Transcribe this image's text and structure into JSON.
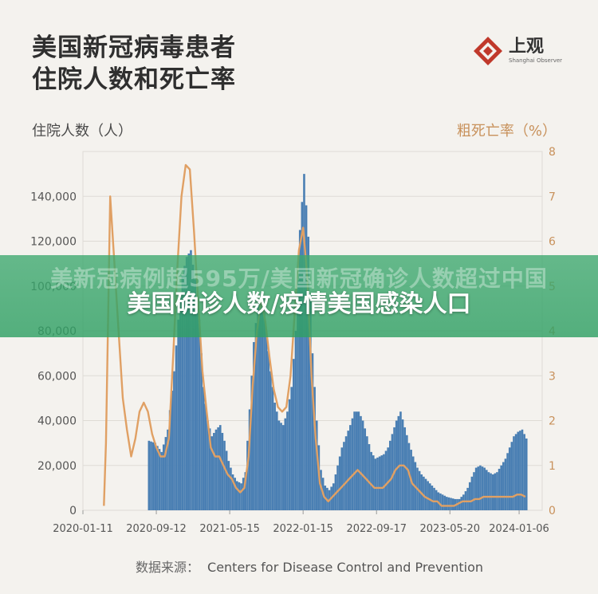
{
  "header": {
    "title_line1": "美国新冠病毒患者",
    "title_line2": "住院人数和死亡率",
    "logo_cn": "上观",
    "logo_en": "Shanghai Observer"
  },
  "source": {
    "label": "数据来源：",
    "text": "Centers for Disease Control and Prevention"
  },
  "overlay": {
    "background_text": "美新冠病例超595万/美国新冠确诊人数超过中国",
    "headline": "美国确诊人数/疫情美国感染人口"
  },
  "colors": {
    "bar": "#4a7fb3",
    "line": "#e0a064",
    "axis_right": "#c8915b",
    "grid": "#dedbd5"
  },
  "chart_data": {
    "type": "bar",
    "y_axis_label": "住院人数（人）",
    "y2_axis_label": "粗死亡率（%）",
    "ylim": [
      0,
      160000
    ],
    "y2lim": [
      0,
      8
    ],
    "yticks": [
      "0",
      "20,000",
      "40,000",
      "60,000",
      "80,000",
      "100,000",
      "120,000",
      "140,000"
    ],
    "yticks_values": [
      0,
      20000,
      40000,
      60000,
      80000,
      100000,
      120000,
      140000
    ],
    "y2ticks": [
      "0",
      "1",
      "2",
      "3",
      "4",
      "5",
      "6",
      "7",
      "8"
    ],
    "y2ticks_values": [
      0,
      1,
      2,
      3,
      4,
      5,
      6,
      7,
      8
    ],
    "xticks": [
      "2020-01-11",
      "2020-09-12",
      "2021-05-15",
      "2022-01-15",
      "2022-09-17",
      "2023-05-20",
      "2024-01-06"
    ],
    "xlim": [
      "2020-01-11",
      "2024-03-23"
    ],
    "grid": true,
    "series": [
      {
        "name": "住院人数",
        "type": "bar",
        "points": [
          [
            "2020-08-15",
            31000
          ],
          [
            "2020-09-05",
            30000
          ],
          [
            "2020-09-26",
            26000
          ],
          [
            "2020-10-17",
            36000
          ],
          [
            "2020-11-07",
            62000
          ],
          [
            "2020-11-21",
            85000
          ],
          [
            "2020-12-05",
            105000
          ],
          [
            "2020-12-19",
            113000
          ],
          [
            "2021-01-02",
            116000
          ],
          [
            "2021-01-16",
            103000
          ],
          [
            "2021-01-30",
            85000
          ],
          [
            "2021-02-13",
            55000
          ],
          [
            "2021-02-27",
            40000
          ],
          [
            "2021-03-13",
            33000
          ],
          [
            "2021-03-27",
            36000
          ],
          [
            "2021-04-10",
            38000
          ],
          [
            "2021-04-24",
            31000
          ],
          [
            "2021-05-08",
            22000
          ],
          [
            "2021-05-22",
            16000
          ],
          [
            "2021-06-05",
            13000
          ],
          [
            "2021-06-19",
            12000
          ],
          [
            "2021-07-03",
            17000
          ],
          [
            "2021-07-17",
            45000
          ],
          [
            "2021-07-31",
            75000
          ],
          [
            "2021-08-14",
            92000
          ],
          [
            "2021-08-28",
            96000
          ],
          [
            "2021-09-11",
            80000
          ],
          [
            "2021-09-25",
            62000
          ],
          [
            "2021-10-09",
            48000
          ],
          [
            "2021-10-23",
            40000
          ],
          [
            "2021-11-06",
            38000
          ],
          [
            "2021-11-20",
            44000
          ],
          [
            "2021-12-04",
            55000
          ],
          [
            "2021-12-18",
            80000
          ],
          [
            "2022-01-01",
            125000
          ],
          [
            "2022-01-15",
            150000
          ],
          [
            "2022-01-29",
            122000
          ],
          [
            "2022-02-12",
            70000
          ],
          [
            "2022-02-26",
            40000
          ],
          [
            "2022-03-12",
            18000
          ],
          [
            "2022-03-26",
            11000
          ],
          [
            "2022-04-09",
            9000
          ],
          [
            "2022-04-23",
            12000
          ],
          [
            "2022-05-07",
            20000
          ],
          [
            "2022-05-21",
            28000
          ],
          [
            "2022-06-04",
            33000
          ],
          [
            "2022-06-18",
            38000
          ],
          [
            "2022-07-02",
            44000
          ],
          [
            "2022-07-16",
            44000
          ],
          [
            "2022-07-30",
            40000
          ],
          [
            "2022-08-13",
            33000
          ],
          [
            "2022-08-27",
            26000
          ],
          [
            "2022-09-10",
            23000
          ],
          [
            "2022-09-24",
            24000
          ],
          [
            "2022-10-08",
            25000
          ],
          [
            "2022-10-22",
            28000
          ],
          [
            "2022-11-05",
            34000
          ],
          [
            "2022-11-19",
            40000
          ],
          [
            "2022-12-03",
            44000
          ],
          [
            "2022-12-17",
            37000
          ],
          [
            "2022-12-31",
            30000
          ],
          [
            "2023-01-14",
            24000
          ],
          [
            "2023-01-28",
            19000
          ],
          [
            "2023-02-11",
            16000
          ],
          [
            "2023-02-25",
            14000
          ],
          [
            "2023-03-11",
            12000
          ],
          [
            "2023-03-25",
            10000
          ],
          [
            "2023-04-08",
            8000
          ],
          [
            "2023-04-22",
            7000
          ],
          [
            "2023-05-06",
            6000
          ],
          [
            "2023-05-20",
            5500
          ],
          [
            "2023-06-03",
            5000
          ],
          [
            "2023-06-17",
            5000
          ],
          [
            "2023-07-01",
            7000
          ],
          [
            "2023-07-15",
            10000
          ],
          [
            "2023-07-29",
            15000
          ],
          [
            "2023-08-12",
            19000
          ],
          [
            "2023-08-26",
            20000
          ],
          [
            "2023-09-09",
            19000
          ],
          [
            "2023-09-23",
            17000
          ],
          [
            "2023-10-07",
            16000
          ],
          [
            "2023-10-21",
            17000
          ],
          [
            "2023-11-04",
            20000
          ],
          [
            "2023-11-18",
            23000
          ],
          [
            "2023-12-02",
            28000
          ],
          [
            "2023-12-16",
            33000
          ],
          [
            "2023-12-30",
            35000
          ],
          [
            "2024-01-13",
            36000
          ],
          [
            "2024-01-27",
            32000
          ]
        ]
      },
      {
        "name": "粗死亡率",
        "type": "line",
        "axis": "y2",
        "points": [
          [
            "2020-03-21",
            0.1
          ],
          [
            "2020-03-28",
            1.5
          ],
          [
            "2020-04-11",
            7.0
          ],
          [
            "2020-04-25",
            5.5
          ],
          [
            "2020-05-09",
            4.0
          ],
          [
            "2020-05-23",
            2.5
          ],
          [
            "2020-06-06",
            1.8
          ],
          [
            "2020-06-20",
            1.2
          ],
          [
            "2020-07-04",
            1.6
          ],
          [
            "2020-07-18",
            2.2
          ],
          [
            "2020-08-01",
            2.4
          ],
          [
            "2020-08-15",
            2.2
          ],
          [
            "2020-08-29",
            1.7
          ],
          [
            "2020-09-12",
            1.4
          ],
          [
            "2020-09-26",
            1.2
          ],
          [
            "2020-10-10",
            1.2
          ],
          [
            "2020-10-24",
            1.6
          ],
          [
            "2020-11-07",
            3.4
          ],
          [
            "2020-11-21",
            5.4
          ],
          [
            "2020-12-05",
            7.0
          ],
          [
            "2020-12-19",
            7.7
          ],
          [
            "2021-01-02",
            7.6
          ],
          [
            "2021-01-16",
            6.2
          ],
          [
            "2021-01-30",
            4.6
          ],
          [
            "2021-02-13",
            3.1
          ],
          [
            "2021-02-27",
            2.2
          ],
          [
            "2021-03-13",
            1.4
          ],
          [
            "2021-03-27",
            1.2
          ],
          [
            "2021-04-10",
            1.2
          ],
          [
            "2021-04-24",
            1.0
          ],
          [
            "2021-05-08",
            0.8
          ],
          [
            "2021-05-22",
            0.7
          ],
          [
            "2021-06-05",
            0.5
          ],
          [
            "2021-06-19",
            0.4
          ],
          [
            "2021-07-03",
            0.5
          ],
          [
            "2021-07-17",
            1.2
          ],
          [
            "2021-07-31",
            2.8
          ],
          [
            "2021-08-14",
            4.0
          ],
          [
            "2021-08-28",
            4.7
          ],
          [
            "2021-09-11",
            4.2
          ],
          [
            "2021-09-25",
            3.4
          ],
          [
            "2021-10-09",
            2.7
          ],
          [
            "2021-10-23",
            2.3
          ],
          [
            "2021-11-06",
            2.2
          ],
          [
            "2021-11-20",
            2.3
          ],
          [
            "2021-12-04",
            3.0
          ],
          [
            "2021-12-18",
            4.4
          ],
          [
            "2022-01-01",
            5.8
          ],
          [
            "2022-01-15",
            6.3
          ],
          [
            "2022-01-29",
            5.2
          ],
          [
            "2022-02-12",
            3.0
          ],
          [
            "2022-02-26",
            1.6
          ],
          [
            "2022-03-12",
            0.6
          ],
          [
            "2022-03-26",
            0.3
          ],
          [
            "2022-04-09",
            0.2
          ],
          [
            "2022-04-23",
            0.3
          ],
          [
            "2022-05-07",
            0.4
          ],
          [
            "2022-05-21",
            0.5
          ],
          [
            "2022-06-04",
            0.6
          ],
          [
            "2022-06-18",
            0.7
          ],
          [
            "2022-07-02",
            0.8
          ],
          [
            "2022-07-16",
            0.9
          ],
          [
            "2022-07-30",
            0.8
          ],
          [
            "2022-08-13",
            0.7
          ],
          [
            "2022-08-27",
            0.6
          ],
          [
            "2022-09-10",
            0.5
          ],
          [
            "2022-09-24",
            0.5
          ],
          [
            "2022-10-08",
            0.5
          ],
          [
            "2022-10-22",
            0.6
          ],
          [
            "2022-11-05",
            0.7
          ],
          [
            "2022-11-19",
            0.9
          ],
          [
            "2022-12-03",
            1.0
          ],
          [
            "2022-12-17",
            1.0
          ],
          [
            "2022-12-31",
            0.9
          ],
          [
            "2023-01-14",
            0.6
          ],
          [
            "2023-01-28",
            0.5
          ],
          [
            "2023-02-11",
            0.4
          ],
          [
            "2023-02-25",
            0.3
          ],
          [
            "2023-03-11",
            0.25
          ],
          [
            "2023-03-25",
            0.2
          ],
          [
            "2023-04-08",
            0.2
          ],
          [
            "2023-04-22",
            0.1
          ],
          [
            "2023-05-06",
            0.1
          ],
          [
            "2023-05-20",
            0.1
          ],
          [
            "2023-06-03",
            0.1
          ],
          [
            "2023-06-17",
            0.15
          ],
          [
            "2023-07-01",
            0.2
          ],
          [
            "2023-07-15",
            0.2
          ],
          [
            "2023-07-29",
            0.2
          ],
          [
            "2023-08-12",
            0.25
          ],
          [
            "2023-08-26",
            0.25
          ],
          [
            "2023-09-09",
            0.3
          ],
          [
            "2023-09-23",
            0.3
          ],
          [
            "2023-10-07",
            0.3
          ],
          [
            "2023-10-21",
            0.3
          ],
          [
            "2023-11-04",
            0.3
          ],
          [
            "2023-11-18",
            0.3
          ],
          [
            "2023-12-02",
            0.3
          ],
          [
            "2023-12-16",
            0.3
          ],
          [
            "2023-12-30",
            0.35
          ],
          [
            "2024-01-13",
            0.35
          ],
          [
            "2024-01-27",
            0.3
          ]
        ]
      }
    ]
  }
}
